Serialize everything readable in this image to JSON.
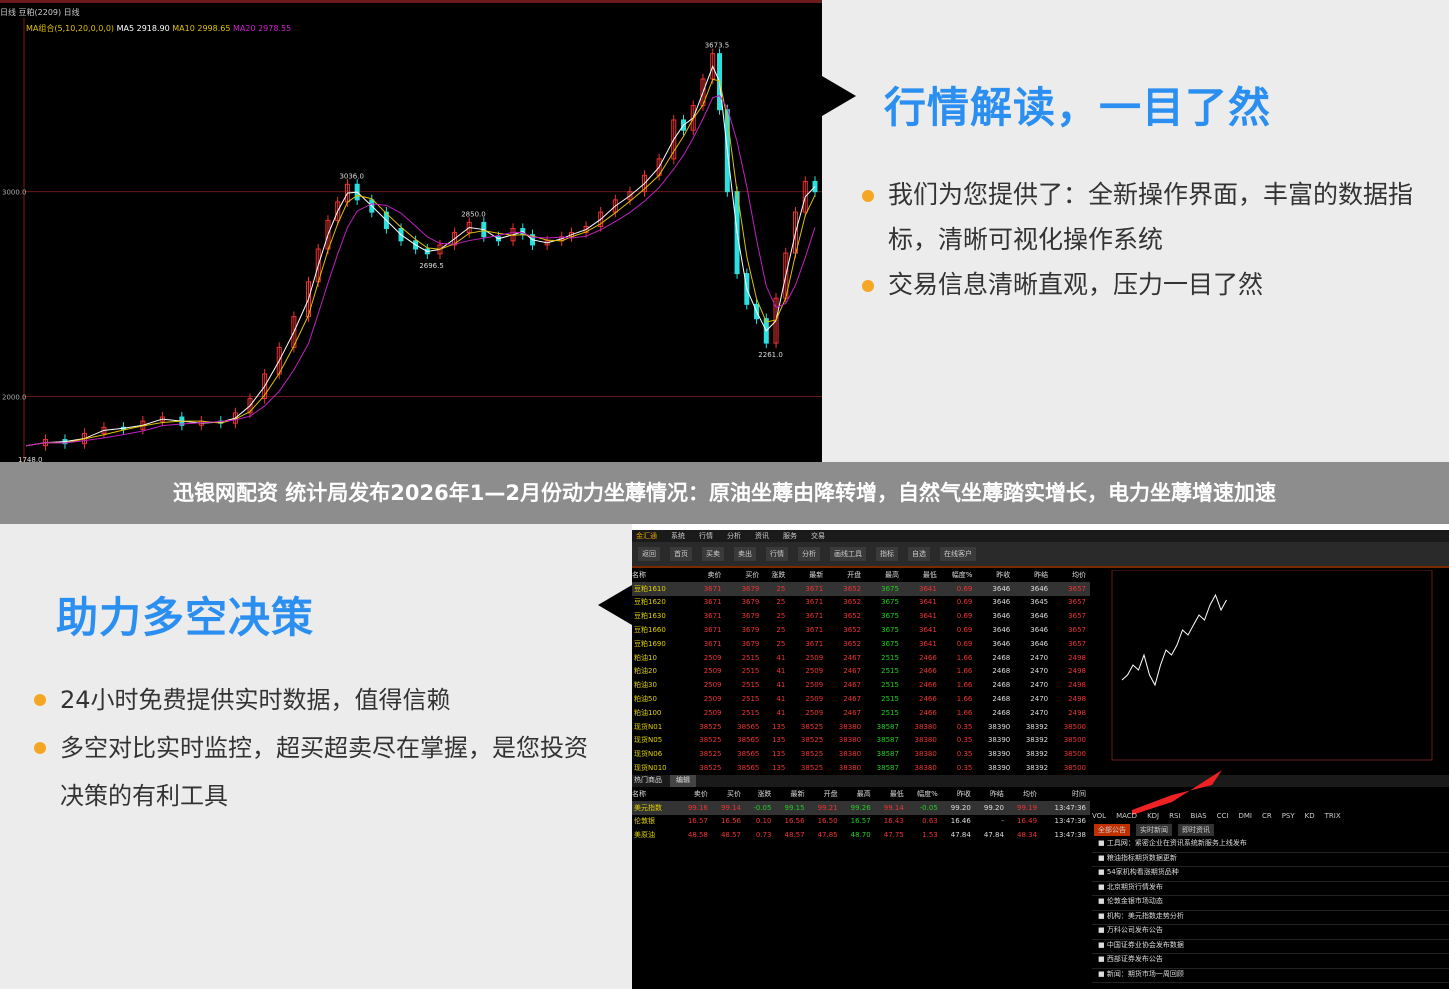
{
  "top_chart": {
    "header": "日线 豆粕(2209) 日线",
    "ma_label": "MA组合(5,10,20,0,0,0)",
    "ma5": "MA5 2918.90",
    "ma10": "MA10 2998.65",
    "ma20": "MA20 2978.55",
    "y_ticks": [
      "3000.0",
      "2000.0"
    ],
    "annotations": [
      "3673.5",
      "3036.0",
      "2850.0",
      "2696.5",
      "2261.0",
      "1748.0"
    ],
    "colors": {
      "up": "#e33",
      "down": "#2ce0e0",
      "ma5": "#ffffff",
      "ma10": "#e0c000",
      "ma20": "#c020c0"
    }
  },
  "chart_data": {
    "type": "line",
    "ylim": [
      1700,
      3750
    ],
    "x": [
      0,
      20,
      40,
      60,
      80,
      100,
      120,
      140,
      160,
      180,
      200,
      215,
      230,
      245,
      260,
      275,
      290,
      300,
      310,
      320,
      330,
      340,
      355,
      370,
      385,
      400,
      412,
      425,
      440,
      455,
      470,
      485,
      500,
      510,
      520,
      535,
      550,
      560,
      575,
      590,
      605,
      620,
      635,
      650,
      665,
      675,
      685,
      695,
      705,
      712,
      720,
      730,
      740,
      750,
      760,
      770,
      780,
      790,
      800,
      810
    ],
    "close": [
      1760,
      1790,
      1770,
      1820,
      1850,
      1840,
      1880,
      1900,
      1860,
      1880,
      1870,
      1920,
      1990,
      2110,
      2240,
      2390,
      2560,
      2720,
      2860,
      2950,
      3036,
      2960,
      2900,
      2820,
      2760,
      2720,
      2696.5,
      2740,
      2800,
      2850,
      2780,
      2760,
      2820,
      2790,
      2740,
      2760,
      2780,
      2800,
      2830,
      2900,
      2960,
      3000,
      3080,
      3160,
      3350,
      3300,
      3420,
      3550,
      3673.5,
      3400,
      3000,
      2600,
      2450,
      2380,
      2261,
      2480,
      2700,
      2900,
      3050,
      3000
    ]
  },
  "right_top": {
    "heading": "行情解读，一目了然",
    "bullets": [
      "我们为您提供了：全新操作界面，丰富的数据指标，清晰可视化操作系统",
      "交易信息清晰直观，压力一目了然"
    ]
  },
  "banner": "迅银网配资 统计局发布2026年1—2月份动力坐蓐情况：原油坐蓐由降转增，自然气坐蓐踏实增长，电力坐蓐增速加速",
  "left_bottom": {
    "heading": "助力多空决策",
    "bullets": [
      "24小时免费提供实时数据，值得信赖",
      "多空对比实时监控，超买超卖尽在掌握，是您投资决策的有利工具"
    ]
  },
  "app": {
    "menu": [
      "金汇通",
      "系统",
      "行情",
      "分析",
      "资讯",
      "服务",
      "交易"
    ],
    "toolbar": [
      "返回",
      "首页",
      "买卖",
      "卖出",
      "行情",
      "分析",
      "画线工具",
      "指标",
      "自选",
      "在线客户"
    ],
    "columns": [
      "名称",
      "卖价",
      "买价",
      "涨跌",
      "最新",
      "开盘",
      "最高",
      "最低",
      "幅度%",
      "昨收",
      "昨结",
      "均价"
    ],
    "rows": [
      [
        "豆粕1610",
        "3671",
        "3679",
        "25",
        "3671",
        "3652",
        "3675",
        "3641",
        "0.69",
        "3646",
        "3646",
        "3657"
      ],
      [
        "豆粕1620",
        "3671",
        "3679",
        "25",
        "3671",
        "3652",
        "3675",
        "3641",
        "0.69",
        "3646",
        "3645",
        "3657"
      ],
      [
        "豆粕1630",
        "3671",
        "3679",
        "25",
        "3671",
        "3652",
        "3675",
        "3641",
        "0.69",
        "3646",
        "3646",
        "3657"
      ],
      [
        "豆粕1660",
        "3671",
        "3679",
        "25",
        "3671",
        "3652",
        "3675",
        "3641",
        "0.69",
        "3646",
        "3646",
        "3657"
      ],
      [
        "豆粕1690",
        "3671",
        "3679",
        "25",
        "3671",
        "3652",
        "3675",
        "3641",
        "0.69",
        "3646",
        "3646",
        "3657"
      ],
      [
        "粕油10",
        "2509",
        "2515",
        "41",
        "2509",
        "2467",
        "2515",
        "2466",
        "1.66",
        "2468",
        "2470",
        "2498"
      ],
      [
        "粕油20",
        "2509",
        "2515",
        "41",
        "2509",
        "2467",
        "2515",
        "2466",
        "1.66",
        "2468",
        "2470",
        "2498"
      ],
      [
        "粕油30",
        "2509",
        "2515",
        "41",
        "2509",
        "2467",
        "2515",
        "2466",
        "1.66",
        "2468",
        "2470",
        "2498"
      ],
      [
        "粕油50",
        "2509",
        "2515",
        "41",
        "2509",
        "2467",
        "2515",
        "2466",
        "1.66",
        "2468",
        "2470",
        "2498"
      ],
      [
        "粕油100",
        "2509",
        "2515",
        "41",
        "2509",
        "2467",
        "2515",
        "2466",
        "1.66",
        "2468",
        "2470",
        "2498"
      ],
      [
        "现货N01",
        "38525",
        "38565",
        "135",
        "38525",
        "38380",
        "38587",
        "38380",
        "0.35",
        "38390",
        "38392",
        "38500"
      ],
      [
        "现货N05",
        "38525",
        "38565",
        "135",
        "38525",
        "38380",
        "38587",
        "38380",
        "0.35",
        "38390",
        "38392",
        "38500"
      ],
      [
        "现货N06",
        "38525",
        "38565",
        "135",
        "38525",
        "38380",
        "38587",
        "38380",
        "0.35",
        "38390",
        "38392",
        "38500"
      ],
      [
        "现货N010",
        "38525",
        "38565",
        "135",
        "38525",
        "38380",
        "38587",
        "38380",
        "0.35",
        "38390",
        "38392",
        "38500"
      ]
    ],
    "hot_tab": "热门商品",
    "edit_btn": "编辑",
    "columns2": [
      "名称",
      "卖价",
      "买价",
      "涨跌",
      "最新",
      "开盘",
      "最高",
      "最低",
      "幅度%",
      "昨收",
      "昨结",
      "均价",
      "时间"
    ],
    "rows2": [
      [
        "美元指数",
        "99.16",
        "99.14",
        "-0.05",
        "99.15",
        "99.21",
        "99.26",
        "99.14",
        "-0.05",
        "99.20",
        "99.20",
        "99.19",
        "13:47:36"
      ],
      [
        "伦敦银",
        "16.57",
        "16.56",
        "0.10",
        "16.56",
        "16.50",
        "16.57",
        "16.43",
        "0.63",
        "16.46",
        "-",
        "16.49",
        "13:47:36"
      ],
      [
        "美原油",
        "48.58",
        "48.57",
        "0.73",
        "48.57",
        "47.85",
        "48.70",
        "47.75",
        "1.53",
        "47.84",
        "47.84",
        "48.34",
        "13:47:38"
      ]
    ],
    "mini_series": [
      3590,
      3600,
      3620,
      3610,
      3640,
      3600,
      3580,
      3620,
      3650,
      3640,
      3660,
      3690,
      3680,
      3700,
      3720,
      3710,
      3740,
      3760,
      3730,
      3750
    ],
    "indicator_tabs": [
      "VOL",
      "MACD",
      "KDJ",
      "RSI",
      "BIAS",
      "CCI",
      "DMI",
      "CR",
      "PSY",
      "KD",
      "TRIX"
    ],
    "news_tabs": [
      "全部公告",
      "实时新闻",
      "即时资讯"
    ],
    "news": [
      "工具网：紧密企业在资讯系统新服务上线发布",
      "粮油指标期货数据更新",
      "54家机构看涨期货品种",
      "北京期货行情发布",
      "伦敦金银市场动态",
      "机构：美元指数走势分析",
      "万科公司发布公告",
      "中国证券业协会发布数据",
      "西部证券发布公告",
      "新闻：期货市场一周回顾"
    ]
  }
}
